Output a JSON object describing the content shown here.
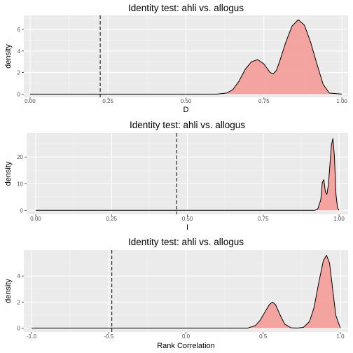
{
  "chart_data": [
    {
      "type": "area",
      "title": "Identity test: ahli vs. allogus",
      "xlabel": "D",
      "ylabel": "density",
      "xlim": [
        -0.02,
        1.02
      ],
      "ylim": [
        -0.3,
        7.3
      ],
      "x_ticks": [
        0,
        0.25,
        0.5,
        0.75,
        1.0
      ],
      "x_tick_labels": [
        "0.00",
        "0.25",
        "0.50",
        "0.75",
        "1.00"
      ],
      "y_ticks": [
        0,
        2,
        4,
        6
      ],
      "y_tick_labels": [
        "0",
        "2",
        "4",
        "6"
      ],
      "observed_value": 0.225,
      "fill_color": "#F4A09C",
      "series": [
        {
          "x": [
            0,
            0.6,
            0.63,
            0.65,
            0.67,
            0.69,
            0.71,
            0.73,
            0.75,
            0.77,
            0.78,
            0.79,
            0.8,
            0.82,
            0.84,
            0.86,
            0.88,
            0.9,
            0.92,
            0.94,
            0.96,
            1.0
          ],
          "y": [
            0,
            0,
            0.1,
            0.4,
            1.2,
            2.3,
            3.0,
            3.2,
            2.8,
            2.0,
            1.9,
            2.2,
            3.0,
            4.8,
            6.3,
            6.9,
            6.4,
            4.8,
            2.8,
            0.9,
            0.1,
            0
          ]
        }
      ]
    },
    {
      "type": "area",
      "title": "Identity test: ahli vs. allogus",
      "xlabel": "I",
      "ylabel": "density",
      "xlim": [
        -0.03,
        1.03
      ],
      "ylim": [
        -1.5,
        29
      ],
      "x_ticks": [
        0,
        0.25,
        0.5,
        0.75,
        1.0
      ],
      "x_tick_labels": [
        "0.00",
        "0.25",
        "0.50",
        "0.75",
        "1.00"
      ],
      "y_ticks": [
        0,
        10,
        20
      ],
      "y_tick_labels": [
        "0",
        "10",
        "20"
      ],
      "observed_value": 0.465,
      "fill_color": "#F4A09C",
      "series": [
        {
          "x": [
            0,
            0.92,
            0.93,
            0.94,
            0.945,
            0.95,
            0.955,
            0.96,
            0.965,
            0.97,
            0.975,
            0.98,
            0.985,
            0.99,
            0.995,
            1.0
          ],
          "y": [
            0,
            0,
            0.5,
            4.0,
            10.5,
            11.5,
            7.0,
            6.0,
            9.5,
            17.0,
            24.5,
            27.0,
            20.0,
            6.0,
            1.0,
            0
          ]
        }
      ]
    },
    {
      "type": "area",
      "title": "Identity test: ahli vs. allogus",
      "xlabel": "Rank Correlation",
      "ylabel": "density",
      "xlim": [
        -1.05,
        1.05
      ],
      "ylim": [
        -0.3,
        6.0
      ],
      "x_ticks": [
        -1.0,
        -0.5,
        0.0,
        0.5,
        1.0
      ],
      "x_tick_labels": [
        "-1.0",
        "-0.5",
        "0.0",
        "0.5",
        "1.0"
      ],
      "y_ticks": [
        0,
        2,
        4
      ],
      "y_tick_labels": [
        "0",
        "2",
        "4"
      ],
      "observed_value": -0.48,
      "fill_color": "#F4A09C",
      "series": [
        {
          "x": [
            -1.0,
            0.4,
            0.45,
            0.48,
            0.51,
            0.54,
            0.56,
            0.58,
            0.61,
            0.64,
            0.68,
            0.72,
            0.76,
            0.8,
            0.83,
            0.86,
            0.89,
            0.91,
            0.93,
            0.95,
            0.97,
            1.0
          ],
          "y": [
            0,
            0,
            0.2,
            0.6,
            1.2,
            1.8,
            2.0,
            1.8,
            1.0,
            0.3,
            0.02,
            0,
            0.05,
            0.5,
            1.6,
            3.5,
            5.2,
            5.6,
            5.0,
            3.0,
            1.0,
            0
          ]
        }
      ]
    }
  ]
}
